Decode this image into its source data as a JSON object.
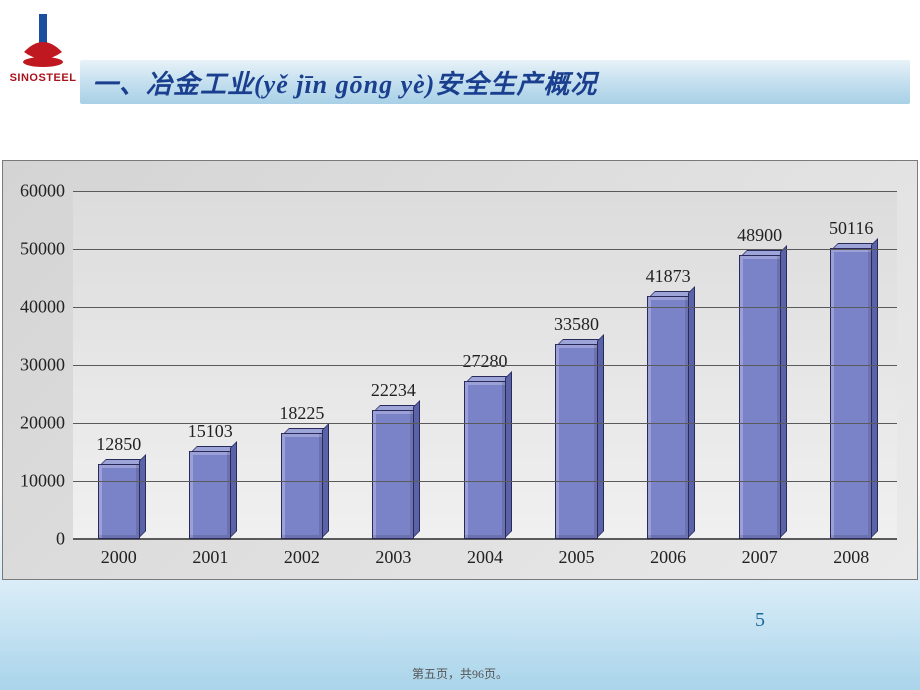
{
  "logo": {
    "text": "SINOSTEEL",
    "pillar_color": "#1a4fa0",
    "swoosh_color": "#c01820"
  },
  "title": "一、冶金工业(yě jīn gōng yè)安全生产概况",
  "chart": {
    "type": "bar",
    "categories": [
      "2000",
      "2001",
      "2002",
      "2003",
      "2004",
      "2005",
      "2006",
      "2007",
      "2008"
    ],
    "values": [
      12850,
      15103,
      18225,
      22234,
      27280,
      33580,
      41873,
      48900,
      50116
    ],
    "bar_color": "#7a82c8",
    "bar_top_color": "#9da4d8",
    "bar_side_color": "#5a62a8",
    "bar_border": "#2a2a5a",
    "ylim": [
      0,
      60000
    ],
    "ytick_step": 10000,
    "yticks": [
      0,
      10000,
      20000,
      30000,
      40000,
      50000,
      60000
    ],
    "grid_color": "#5a5a5a",
    "plot_bg_from": "#dcdcdc",
    "plot_bg_to": "#f0f0f0",
    "chart_bg_from": "#d4d4d4",
    "chart_bg_to": "#eaeaea",
    "label_fontsize": 18,
    "tick_fontsize": 18,
    "font_family": "Times New Roman",
    "bar_width_ratio": 0.46
  },
  "slide_number": "5",
  "footer": "第五页，共96页。"
}
